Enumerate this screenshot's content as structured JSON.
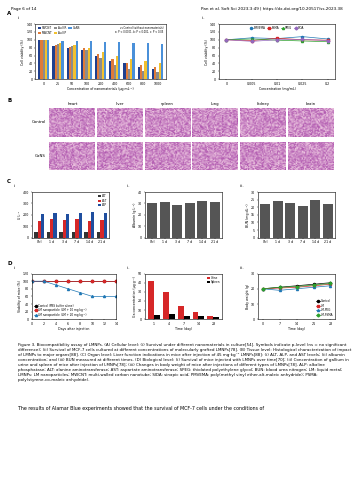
{
  "header": {
    "left": "Page 6 of 14",
    "right": "Pan et al. Soft Sci 2023;3:49 | https://dx.doi.org/10.20517/ss.2023.38"
  },
  "chart_data": [
    {
      "type": "bar",
      "letter": "A",
      "sub": "i.",
      "x_label": "Concentration of nanomaterials (μg mL⁻¹)",
      "y_label": "Cell viability (%)",
      "categories": [
        "0",
        "25",
        "50",
        "100",
        "200",
        "400",
        "600",
        "800",
        "1000"
      ],
      "series": [
        {
          "name": "SWCNT",
          "color": "#1f3f8f",
          "values": [
            100,
            85,
            80,
            75,
            60,
            45,
            40,
            30,
            25
          ]
        },
        {
          "name": "MWCNT",
          "color": "#e07b39",
          "values": [
            100,
            88,
            82,
            78,
            65,
            50,
            42,
            35,
            30
          ]
        },
        {
          "name": "Au NR",
          "color": "#8c8c8c",
          "values": [
            100,
            90,
            85,
            75,
            55,
            35,
            25,
            20,
            18
          ]
        },
        {
          "name": "Au NP",
          "color": "#f2c12e",
          "values": [
            100,
            92,
            88,
            80,
            70,
            60,
            52,
            45,
            40
          ]
        },
        {
          "name": "GaNS",
          "color": "#4a90d9",
          "values": [
            100,
            98,
            97,
            96,
            95,
            94,
            93,
            92,
            90
          ]
        }
      ],
      "annotation": [
        "vs Control (without nanomaterials)",
        "a: P < 0.0001, b: P < 0.001, c: P < 0.05"
      ],
      "ylim": [
        0,
        140
      ],
      "yticks": [
        0,
        20,
        40,
        60,
        80,
        100,
        120,
        140
      ],
      "legend": "upper left"
    },
    {
      "type": "line",
      "sub": "ii.",
      "x_label": "Concentration (mg/mL)",
      "y_label": "Cell viability (%)",
      "categories": [
        "0",
        "0.005",
        "0.01",
        "0.025",
        "0.2"
      ],
      "series": [
        {
          "name": "PMVEMA",
          "color": "#1f77b4",
          "marker": "o",
          "values": [
            100,
            105,
            103,
            108,
            102
          ]
        },
        {
          "name": "PSMA",
          "color": "#d62728",
          "marker": "s",
          "values": [
            100,
            98,
            104,
            100,
            99
          ]
        },
        {
          "name": "SPEG",
          "color": "#2ca02c",
          "marker": "^",
          "values": [
            100,
            102,
            99,
            97,
            95
          ]
        },
        {
          "name": "SIDA",
          "color": "#9467bd",
          "marker": "D",
          "values": [
            100,
            96,
            100,
            101,
            98
          ]
        }
      ],
      "ylim": [
        0,
        140
      ],
      "yticks": [
        0,
        20,
        40,
        60,
        80,
        100,
        120,
        140
      ],
      "legend": "upper center"
    },
    {
      "type": "bar",
      "letter": "C",
      "sub": "i.",
      "y_label": "U L⁻¹",
      "categories": [
        "Ctrl",
        "1 d",
        "3 d",
        "7 d",
        "14 d",
        "21 d"
      ],
      "series": [
        {
          "name": "ALT",
          "color": "#333333",
          "values": [
            45,
            50,
            48,
            52,
            47,
            49
          ]
        },
        {
          "name": "AST",
          "color": "#d62728",
          "values": [
            150,
            160,
            155,
            165,
            150,
            158
          ]
        },
        {
          "name": "ALP",
          "color": "#1f4e9f",
          "values": [
            210,
            220,
            205,
            215,
            225,
            212
          ]
        }
      ],
      "ylim": [
        0,
        400
      ],
      "yticks": [
        0,
        100,
        200,
        300,
        400
      ],
      "legend": "upper right"
    },
    {
      "type": "bar",
      "sub": "ii.",
      "y_label": "Albumin (g L⁻¹)",
      "categories": [
        "Ctrl",
        "1 d",
        "3 d",
        "7 d",
        "14 d",
        "21 d"
      ],
      "series": [
        {
          "name": "Albumin",
          "color": "#555555",
          "values": [
            30,
            31,
            29,
            30,
            32,
            31
          ]
        }
      ],
      "ylim": [
        0,
        40
      ],
      "yticks": [
        0,
        10,
        20,
        30,
        40
      ]
    },
    {
      "type": "bar",
      "sub": "iii.",
      "y_label": "BUN (mg dL⁻¹)",
      "categories": [
        "Ctrl",
        "1 d",
        "3 d",
        "7 d",
        "14 d",
        "21 d"
      ],
      "series": [
        {
          "name": "BUN",
          "color": "#555555",
          "values": [
            22,
            24,
            23,
            21,
            25,
            22
          ]
        }
      ],
      "ylim": [
        0,
        30
      ],
      "yticks": [
        0,
        5,
        10,
        15,
        20,
        25,
        30
      ]
    },
    {
      "type": "line",
      "letter": "D",
      "sub": "i.",
      "x_label": "Days after injection",
      "y_label": "Viability of mice (%)",
      "x": [
        0,
        2,
        4,
        6,
        8,
        10,
        12,
        14
      ],
      "series": [
        {
          "name": "Control (PBS buffer alone)",
          "color": "#000000",
          "marker": "o",
          "values": [
            100,
            100,
            100,
            100,
            100,
            100,
            100,
            100
          ]
        },
        {
          "name": "LM nanoparticle (LM + 10 mg kg⁻¹)",
          "color": "#d62728",
          "marker": "s",
          "values": [
            100,
            100,
            100,
            100,
            100,
            100,
            100,
            100
          ]
        },
        {
          "name": "LM nanoparticle (LM + 20 mg kg⁻¹)",
          "color": "#1f77b4",
          "marker": "^",
          "values": [
            100,
            100,
            90,
            80,
            70,
            60,
            60,
            60
          ]
        }
      ],
      "xlim": [
        0,
        14
      ],
      "xticks": [
        0,
        2,
        4,
        6,
        8,
        10,
        12,
        14
      ],
      "ylim": [
        0,
        120
      ],
      "yticks": [
        0,
        20,
        40,
        60,
        80,
        100,
        120
      ],
      "legend": "lower left"
    },
    {
      "type": "bar",
      "sub": "ii.",
      "x_label": "Time (day)",
      "y_label": "Ga concentration (μg g⁻¹)",
      "categories": [
        "1",
        "4",
        "7",
        "14",
        "28"
      ],
      "series": [
        {
          "name": "Urine",
          "color": "#d62728",
          "values": [
            42,
            30,
            15,
            8,
            3
          ]
        },
        {
          "name": "Spleen",
          "color": "#000000",
          "values": [
            5,
            6,
            4,
            3,
            2
          ]
        }
      ],
      "ylim": [
        0,
        50
      ],
      "yticks": [
        0,
        10,
        20,
        30,
        40,
        50
      ],
      "legend": "upper right"
    },
    {
      "type": "line",
      "sub": "iii.",
      "x_label": "Time (day)",
      "y_label": "Body weight (g)",
      "x": [
        0,
        7,
        14,
        21,
        28
      ],
      "series": [
        {
          "name": "Control",
          "color": "#000000",
          "marker": "o",
          "values": [
            20,
            21,
            22,
            23,
            24
          ]
        },
        {
          "name": "LM",
          "color": "#d62728",
          "marker": "s",
          "values": [
            20,
            20.5,
            21,
            22,
            23
          ]
        },
        {
          "name": "LM-PEG",
          "color": "#1f77b4",
          "marker": "^",
          "values": [
            20,
            19,
            20,
            21,
            22
          ]
        },
        {
          "name": "LM-PSMA",
          "color": "#2ca02c",
          "marker": "D",
          "values": [
            20,
            21,
            21.5,
            22.5,
            23.5
          ]
        }
      ],
      "xlim": [
        -2,
        30
      ],
      "xticks": [
        0,
        7,
        14,
        21,
        28
      ],
      "ylim": [
        0,
        30
      ],
      "yticks": [
        0,
        10,
        20,
        30
      ],
      "legend": "lower right"
    }
  ],
  "histology": {
    "letter": "B",
    "organs": [
      "heart",
      "liver",
      "spleen",
      "lung",
      "kidney",
      "brain"
    ],
    "rows": [
      "Control",
      "GaNS"
    ]
  },
  "caption": "Figure 3. Biocompatibility assay of LMNPs. (A) Cellular level: (i) Survival under different nanomaterials in culture[54]. Symbols indicate p-level (ns = no significant difference); (ii) Survival of MCF-7 cells cultured at different concentrations of molecularly grafted LMNPs[78]. (B) Tissue level: Histological characterization of impact of LMNPs to major organs[88]. (C) Organ level: Liver function indications in mice after injection of 45 mg·kg⁻¹ LMNPs[88]: (i) ALT, ALP, and AST levels; (ii) albumin concentration; and (iii) BUN measured at different times. (D) Biological level: (i) Survival of mice injected with LMNPs over time[70]; (ii) Concentration of gallium in urine and spleen of mice after injection of LMNPs[78]; (iii) Changes in body weight of mice after injections of different types of LMNPs[78]. ALP: alkaline phosphatase; ALT: alanine aminotransferase; AST: aspartate aminotransferase; SPEG: thiolated polyethylene glycol; BUN: blood urea nitrogen; LM: liquid metal; LMNPs: LM nanoparticles; MWCNT: multi-walled carbon nanotube; SIDA: sinapic acid; PMVEMA: poly(methyl vinyl ether-alt-maleic anhydride); PSMA: poly(styrene-co-maleic anhydride).",
  "body_text": "The results of Alamar Blue experiments showed that the survival of MCF-7 cells under the conditions of"
}
